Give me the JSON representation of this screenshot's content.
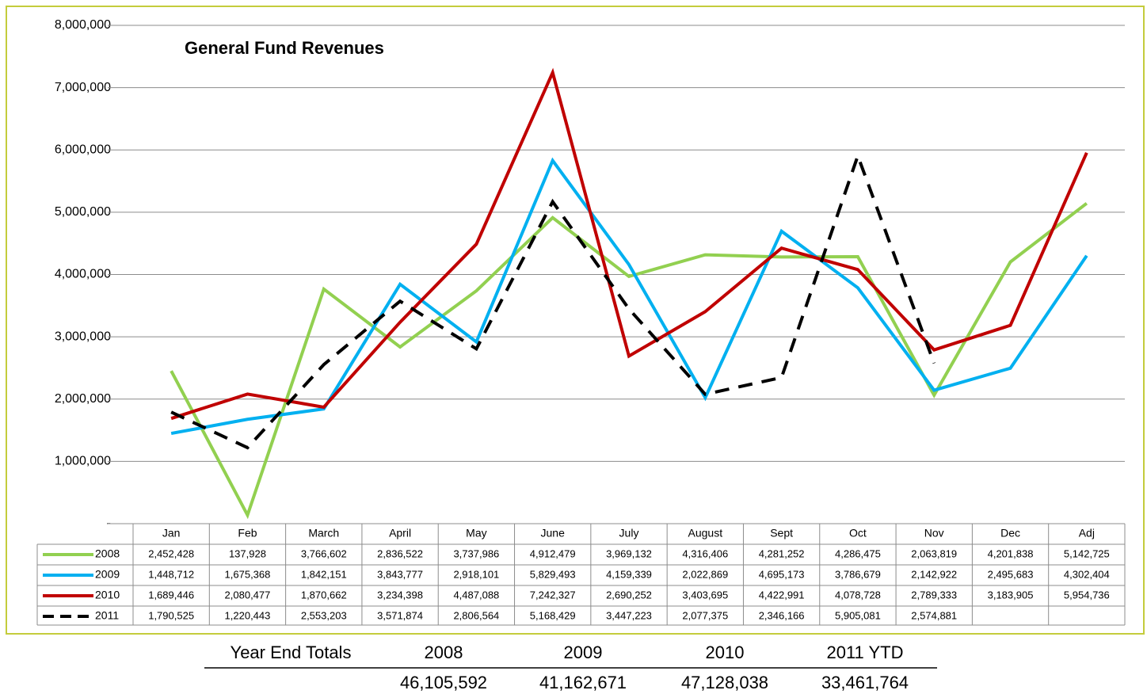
{
  "chart_data": {
    "type": "line",
    "title": "General Fund Revenues",
    "categories": [
      "Jan",
      "Feb",
      "March",
      "April",
      "May",
      "June",
      "July",
      "August",
      "Sept",
      "Oct",
      "Nov",
      "Dec",
      "Adj"
    ],
    "series": [
      {
        "name": "2008",
        "color": "#92d050",
        "line_style": "solid",
        "values": [
          2452428,
          137928,
          3766602,
          2836522,
          3737986,
          4912479,
          3969132,
          4316406,
          4281252,
          4286475,
          2063819,
          4201838,
          5142725
        ],
        "value_labels": [
          "2,452,428",
          "137,928",
          "3,766,602",
          "2,836,522",
          "3,737,986",
          "4,912,479",
          "3,969,132",
          "4,316,406",
          "4,281,252",
          "4,286,475",
          "2,063,819",
          "4,201,838",
          "5,142,725"
        ]
      },
      {
        "name": "2009",
        "color": "#00b0f0",
        "line_style": "solid",
        "values": [
          1448712,
          1675368,
          1842151,
          3843777,
          2918101,
          5829493,
          4159339,
          2022869,
          4695173,
          3786679,
          2142922,
          2495683,
          4302404
        ],
        "value_labels": [
          "1,448,712",
          "1,675,368",
          "1,842,151",
          "3,843,777",
          "2,918,101",
          "5,829,493",
          "4,159,339",
          "2,022,869",
          "4,695,173",
          "3,786,679",
          "2,142,922",
          "2,495,683",
          "4,302,404"
        ]
      },
      {
        "name": "2010",
        "color": "#c00000",
        "line_style": "solid",
        "values": [
          1689446,
          2080477,
          1870662,
          3234398,
          4487088,
          7242327,
          2690252,
          3403695,
          4422991,
          4078728,
          2789333,
          3183905,
          5954736
        ],
        "value_labels": [
          "1,689,446",
          "2,080,477",
          "1,870,662",
          "3,234,398",
          "4,487,088",
          "7,242,327",
          "2,690,252",
          "3,403,695",
          "4,422,991",
          "4,078,728",
          "2,789,333",
          "3,183,905",
          "5,954,736"
        ]
      },
      {
        "name": "2011",
        "color": "#000000",
        "line_style": "dashed",
        "values": [
          1790525,
          1220443,
          2553203,
          3571874,
          2806564,
          5168429,
          3447223,
          2077375,
          2346166,
          5905081,
          2574881,
          null,
          null
        ],
        "value_labels": [
          "1,790,525",
          "1,220,443",
          "2,553,203",
          "3,571,874",
          "2,806,564",
          "5,168,429",
          "3,447,223",
          "2,077,375",
          "2,346,166",
          "5,905,081",
          "2,574,881",
          null,
          null
        ]
      }
    ],
    "ylim": [
      0,
      8000000
    ],
    "yticks": [
      {
        "value": 0,
        "label": "-"
      },
      {
        "value": 1000000,
        "label": "1,000,000"
      },
      {
        "value": 2000000,
        "label": "2,000,000"
      },
      {
        "value": 3000000,
        "label": "3,000,000"
      },
      {
        "value": 4000000,
        "label": "4,000,000"
      },
      {
        "value": 5000000,
        "label": "5,000,000"
      },
      {
        "value": 6000000,
        "label": "6,000,000"
      },
      {
        "value": 7000000,
        "label": "7,000,000"
      },
      {
        "value": 8000000,
        "label": "8,000,000"
      }
    ],
    "grid": true
  },
  "totals": {
    "title": "Year End Totals",
    "headers": [
      "2008",
      "2009",
      "2010",
      "2011 YTD"
    ],
    "values": [
      "46,105,592",
      "41,162,671",
      "47,128,038",
      "33,461,764"
    ]
  }
}
